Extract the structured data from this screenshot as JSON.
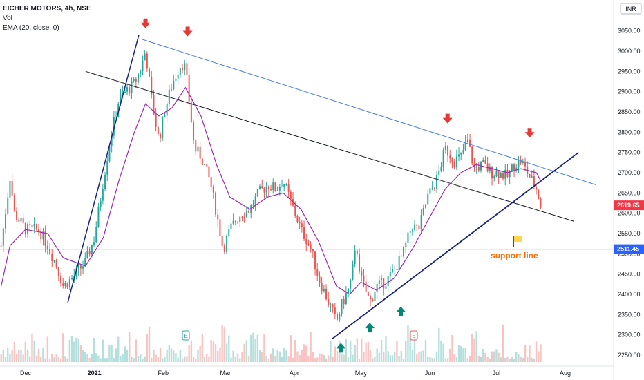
{
  "header": {
    "symbol_line": "EICHER MOTORS, 4h, NSE",
    "vol_label": "Vol",
    "ema_label": "EMA (20, close, 0)"
  },
  "currency_badge": "INR",
  "colors": {
    "up": "#26a69a",
    "down": "#ef5350",
    "ema": "#9c27b0",
    "channel_upper": "#4a7fe0",
    "channel_mid": "#131722",
    "trend_navy": "#1a237e",
    "support": "#2962ff",
    "arrow_red": "#e53935",
    "arrow_green": "#00897b",
    "annotation_orange": "#ff6d00",
    "last_price_bg": "#f23645"
  },
  "annotations": {
    "support_label": "support line"
  },
  "chart_data": {
    "type": "candlestick",
    "title": "EICHER MOTORS, 4h, NSE",
    "y_axis_ticks": [
      3050,
      3000,
      2950,
      2900,
      2850,
      2800,
      2750,
      2700,
      2650,
      2600,
      2550,
      2500,
      2450,
      2400,
      2350,
      2300,
      2250
    ],
    "y_tick_labels": [
      "3050.00",
      "3000.00",
      "2950.00",
      "2900.00",
      "2850.00",
      "2800.00",
      "2750.00",
      "2700.00",
      "2650.00",
      "2600.00",
      "2550.00",
      "2500.00",
      "2450.00",
      "2400.00",
      "2350.00",
      "2300.00",
      "2250.00"
    ],
    "ylim": [
      2225,
      3100
    ],
    "x_tick_labels": [
      "Dec",
      "2021",
      "Feb",
      "Mar",
      "Apr",
      "May",
      "Jun",
      "Jul",
      "Aug"
    ],
    "price_labels": {
      "support": "2511.45",
      "last": "2619.65"
    },
    "close_path": [
      {
        "x": "Nov 20",
        "y": 2520
      },
      {
        "x": "Nov 24",
        "y": 2690
      },
      {
        "x": "Nov 26",
        "y": 2600
      },
      {
        "x": "Dec 1",
        "y": 2560
      },
      {
        "x": "Dec 7",
        "y": 2560
      },
      {
        "x": "Dec 11",
        "y": 2520
      },
      {
        "x": "Dec 15",
        "y": 2470
      },
      {
        "x": "Dec 18",
        "y": 2420
      },
      {
        "x": "Dec 22",
        "y": 2440
      },
      {
        "x": "Dec 28",
        "y": 2480
      },
      {
        "x": "Jan 1",
        "y": 2540
      },
      {
        "x": "Jan 5",
        "y": 2680
      },
      {
        "x": "Jan 8",
        "y": 2780
      },
      {
        "x": "Jan 12",
        "y": 2880
      },
      {
        "x": "Jan 15",
        "y": 2900
      },
      {
        "x": "Jan 19",
        "y": 2920
      },
      {
        "x": "Jan 22",
        "y": 2960
      },
      {
        "x": "Jan 24",
        "y": 3000
      },
      {
        "x": "Jan 27",
        "y": 2870
      },
      {
        "x": "Jan 30",
        "y": 2780
      },
      {
        "x": "Feb 2",
        "y": 2860
      },
      {
        "x": "Feb 5",
        "y": 2920
      },
      {
        "x": "Feb 9",
        "y": 2970
      },
      {
        "x": "Feb 11",
        "y": 2960
      },
      {
        "x": "Feb 15",
        "y": 2760
      },
      {
        "x": "Feb 18",
        "y": 2740
      },
      {
        "x": "Feb 22",
        "y": 2680
      },
      {
        "x": "Feb 25",
        "y": 2600
      },
      {
        "x": "Feb 28",
        "y": 2510
      },
      {
        "x": "Mar 3",
        "y": 2560
      },
      {
        "x": "Mar 8",
        "y": 2600
      },
      {
        "x": "Mar 12",
        "y": 2610
      },
      {
        "x": "Mar 16",
        "y": 2650
      },
      {
        "x": "Mar 20",
        "y": 2670
      },
      {
        "x": "Mar 24",
        "y": 2660
      },
      {
        "x": "Mar 27",
        "y": 2680
      },
      {
        "x": "Mar 31",
        "y": 2620
      },
      {
        "x": "Apr 4",
        "y": 2560
      },
      {
        "x": "Apr 8",
        "y": 2520
      },
      {
        "x": "Apr 12",
        "y": 2440
      },
      {
        "x": "Apr 15",
        "y": 2400
      },
      {
        "x": "Apr 18",
        "y": 2360
      },
      {
        "x": "Apr 20",
        "y": 2330
      },
      {
        "x": "Apr 22",
        "y": 2370
      },
      {
        "x": "Apr 26",
        "y": 2420
      },
      {
        "x": "Apr 29",
        "y": 2520
      },
      {
        "x": "May 1",
        "y": 2440
      },
      {
        "x": "May 5",
        "y": 2380
      },
      {
        "x": "May 8",
        "y": 2420
      },
      {
        "x": "May 12",
        "y": 2430
      },
      {
        "x": "May 16",
        "y": 2460
      },
      {
        "x": "May 20",
        "y": 2500
      },
      {
        "x": "May 24",
        "y": 2570
      },
      {
        "x": "May 27",
        "y": 2560
      },
      {
        "x": "May 31",
        "y": 2640
      },
      {
        "x": "Jun 4",
        "y": 2680
      },
      {
        "x": "Jun 8",
        "y": 2760
      },
      {
        "x": "Jun 12",
        "y": 2730
      },
      {
        "x": "Jun 15",
        "y": 2740
      },
      {
        "x": "Jun 18",
        "y": 2780
      },
      {
        "x": "Jun 21",
        "y": 2710
      },
      {
        "x": "Jun 25",
        "y": 2720
      },
      {
        "x": "Jun 29",
        "y": 2700
      },
      {
        "x": "Jul 2",
        "y": 2700
      },
      {
        "x": "Jul 6",
        "y": 2690
      },
      {
        "x": "Jul 9",
        "y": 2720
      },
      {
        "x": "Jul 12",
        "y": 2730
      },
      {
        "x": "Jul 15",
        "y": 2700
      },
      {
        "x": "Jul 19",
        "y": 2660
      },
      {
        "x": "Jul 21",
        "y": 2620
      }
    ],
    "ema_path": [
      {
        "x": "Nov 20",
        "y": 2420
      },
      {
        "x": "Nov 24",
        "y": 2520
      },
      {
        "x": "Dec 1",
        "y": 2560
      },
      {
        "x": "Dec 11",
        "y": 2550
      },
      {
        "x": "Dec 18",
        "y": 2490
      },
      {
        "x": "Dec 28",
        "y": 2470
      },
      {
        "x": "Jan 5",
        "y": 2540
      },
      {
        "x": "Jan 12",
        "y": 2680
      },
      {
        "x": "Jan 19",
        "y": 2800
      },
      {
        "x": "Jan 24",
        "y": 2870
      },
      {
        "x": "Jan 30",
        "y": 2840
      },
      {
        "x": "Feb 5",
        "y": 2860
      },
      {
        "x": "Feb 11",
        "y": 2910
      },
      {
        "x": "Feb 18",
        "y": 2840
      },
      {
        "x": "Feb 25",
        "y": 2720
      },
      {
        "x": "Mar 3",
        "y": 2640
      },
      {
        "x": "Mar 12",
        "y": 2610
      },
      {
        "x": "Mar 20",
        "y": 2640
      },
      {
        "x": "Mar 27",
        "y": 2650
      },
      {
        "x": "Apr 4",
        "y": 2610
      },
      {
        "x": "Apr 12",
        "y": 2530
      },
      {
        "x": "Apr 20",
        "y": 2420
      },
      {
        "x": "Apr 26",
        "y": 2400
      },
      {
        "x": "May 1",
        "y": 2430
      },
      {
        "x": "May 8",
        "y": 2410
      },
      {
        "x": "May 16",
        "y": 2440
      },
      {
        "x": "May 24",
        "y": 2510
      },
      {
        "x": "Jun 1",
        "y": 2590
      },
      {
        "x": "Jun 8",
        "y": 2660
      },
      {
        "x": "Jun 15",
        "y": 2700
      },
      {
        "x": "Jun 22",
        "y": 2720
      },
      {
        "x": "Jun 29",
        "y": 2710
      },
      {
        "x": "Jul 6",
        "y": 2700
      },
      {
        "x": "Jul 12",
        "y": 2710
      },
      {
        "x": "Jul 19",
        "y": 2700
      },
      {
        "x": "Jul 21",
        "y": 2680
      }
    ],
    "trendlines": {
      "upper_channel": [
        {
          "x": "Jan 22",
          "y": 3030
        },
        {
          "x": "Aug 15",
          "y": 2670
        }
      ],
      "middle_channel": [
        {
          "x": "Dec 28",
          "y": 2950
        },
        {
          "x": "Aug 5",
          "y": 2580
        }
      ],
      "rally_line": [
        {
          "x": "Dec 20",
          "y": 2380
        },
        {
          "x": "Jan 21",
          "y": 3040
        }
      ],
      "rising_support": [
        {
          "x": "Apr 18",
          "y": 2290
        },
        {
          "x": "Aug 7",
          "y": 2750
        }
      ],
      "horizontal_support": 2511.45
    },
    "arrows_down": [
      {
        "x": "Jan 24",
        "y": 3060
      },
      {
        "x": "Feb 12",
        "y": 3040
      },
      {
        "x": "Jun 9",
        "y": 2825
      },
      {
        "x": "Jul 16",
        "y": 2790
      }
    ],
    "arrows_up": [
      {
        "x": "Apr 22",
        "y": 2280
      },
      {
        "x": "May 5",
        "y": 2330
      },
      {
        "x": "May 19",
        "y": 2370
      }
    ]
  }
}
